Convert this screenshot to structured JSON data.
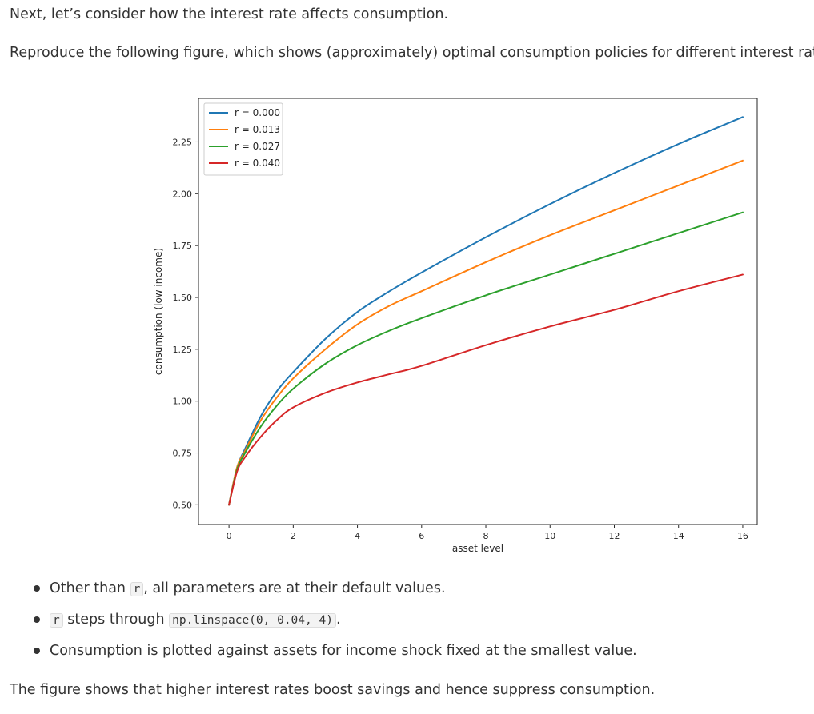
{
  "text": {
    "intro": "Next, let’s consider how the interest rate affects consumption.",
    "task": "Reproduce the following figure, which shows (approximately) optimal consumption policies for different interest rates",
    "conclusion": "The figure shows that higher interest rates boost savings and hence suppress consumption."
  },
  "bullets": [
    {
      "before": "Other than ",
      "code": "r",
      "after": ", all parameters are at their default values."
    },
    {
      "before": "",
      "code": "r",
      "after": " steps through ",
      "code2": "np.linspace(0, 0.04, 4)",
      "after2": "."
    },
    {
      "before": "Consumption is plotted against assets for income shock fixed at the smallest value.",
      "code": "",
      "after": ""
    }
  ],
  "chart_data": {
    "type": "line",
    "title": "",
    "xlabel": "asset level",
    "ylabel": "consumption (low income)",
    "xlim": [
      -0.95,
      16.45
    ],
    "ylim": [
      0.405,
      2.46
    ],
    "xticks": [
      0,
      2,
      4,
      6,
      8,
      10,
      12,
      14,
      16
    ],
    "yticks": [
      0.5,
      0.75,
      1.0,
      1.25,
      1.5,
      1.75,
      2.0,
      2.25
    ],
    "ytick_labels": [
      "0.50",
      "0.75",
      "1.00",
      "1.25",
      "1.50",
      "1.75",
      "2.00",
      "2.25"
    ],
    "grid": false,
    "legend_position": "upper left",
    "x": [
      0,
      0.25,
      0.5,
      1,
      1.5,
      2,
      3,
      4,
      5,
      6,
      8,
      10,
      12,
      14,
      16
    ],
    "series": [
      {
        "name": "r = 0.000",
        "color": "#1f77b4",
        "values": [
          0.5,
          0.68,
          0.77,
          0.93,
          1.05,
          1.14,
          1.3,
          1.43,
          1.53,
          1.62,
          1.79,
          1.95,
          2.1,
          2.24,
          2.37
        ]
      },
      {
        "name": "r = 0.013",
        "color": "#ff7f0e",
        "values": [
          0.5,
          0.68,
          0.76,
          0.91,
          1.02,
          1.11,
          1.25,
          1.37,
          1.46,
          1.53,
          1.67,
          1.8,
          1.92,
          2.04,
          2.16
        ]
      },
      {
        "name": "r = 0.027",
        "color": "#2ca02c",
        "values": [
          0.5,
          0.67,
          0.75,
          0.88,
          0.98,
          1.06,
          1.18,
          1.27,
          1.34,
          1.4,
          1.51,
          1.61,
          1.71,
          1.81,
          1.91
        ]
      },
      {
        "name": "r = 0.040",
        "color": "#d62728",
        "values": [
          0.5,
          0.66,
          0.73,
          0.83,
          0.91,
          0.97,
          1.04,
          1.09,
          1.13,
          1.17,
          1.27,
          1.36,
          1.44,
          1.53,
          1.61
        ]
      }
    ]
  }
}
